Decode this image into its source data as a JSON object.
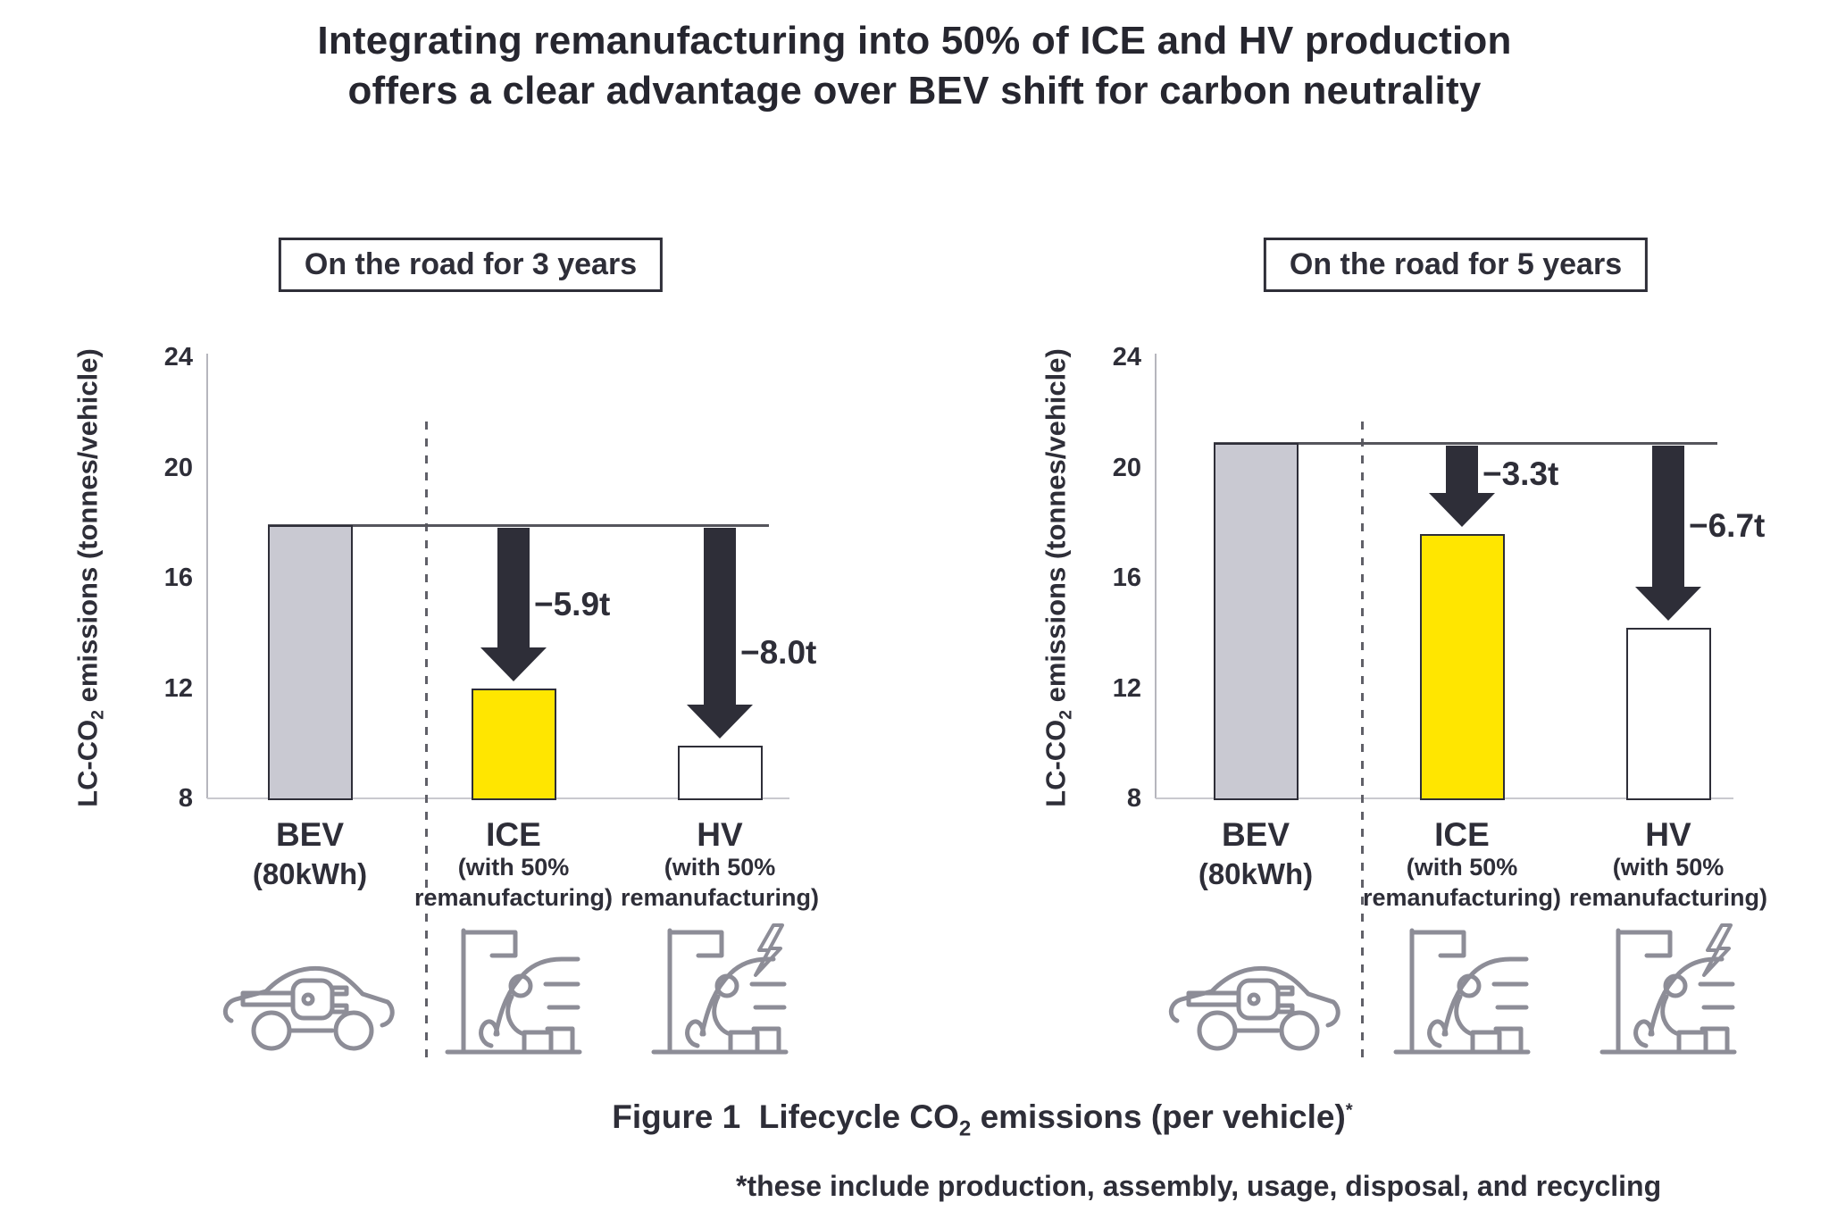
{
  "title": {
    "line1": "Integrating remanufacturing into 50% of ICE and HV production",
    "line2": "offers a clear advantage over BEV shift for carbon neutrality"
  },
  "caption": {
    "pre": "Figure 1  Lifecycle CO",
    "sub": "2",
    "post": " emissions (per vehicle)",
    "sup": "*"
  },
  "footnote": "*these include production, assembly, usage, disposal, and recycling",
  "colors": {
    "ink": "#2e2e38",
    "title_text": "#26262f",
    "bar_gray": "#c9c9d2",
    "bar_yellow": "#ffe600",
    "bar_white": "#ffffff",
    "axis": "#b6b6bd",
    "baseline": "#c9c9cf",
    "reference_line": "#55555c",
    "dashed_divider": "#606068",
    "icon": "#8d8d97"
  },
  "chart_data": [
    {
      "type": "bar",
      "title": "On the road for 3 years",
      "ylabel": "LC-CO2 emissions (tonnes/vehicle)",
      "ylabel_parts": {
        "pre": "LC-CO",
        "sub": "2",
        "post": " emissions (tonnes/vehicle)"
      },
      "ylim": [
        8,
        24
      ],
      "yticks": [
        24,
        20,
        16,
        12,
        8
      ],
      "grid": false,
      "categories": [
        {
          "name": "BEV",
          "sub_lines": [
            "(80kWh)"
          ],
          "icon": "ev-car-plug-icon"
        },
        {
          "name": "ICE",
          "sub_lines": [
            "(with 50%",
            "remanufacturing)"
          ],
          "icon": "assembly-line-car-icon"
        },
        {
          "name": "HV",
          "sub_lines": [
            "(with 50%",
            "remanufacturing)"
          ],
          "icon": "assembly-line-car-lightning-icon"
        }
      ],
      "values": [
        17.9,
        12.0,
        9.9
      ],
      "bar_colors": [
        "#c9c9d2",
        "#ffe600",
        "#ffffff"
      ],
      "reference_line_value": 17.9,
      "annotations": [
        {
          "category": "ICE",
          "label": "−5.9t"
        },
        {
          "category": "HV",
          "label": "−8.0t"
        }
      ]
    },
    {
      "type": "bar",
      "title": "On the road for 5 years",
      "ylabel": "LC-CO2 emissions (tonnes/vehicle)",
      "ylabel_parts": {
        "pre": "LC-CO",
        "sub": "2",
        "post": " emissions (tonnes/vehicle)"
      },
      "ylim": [
        8,
        24
      ],
      "yticks": [
        24,
        20,
        16,
        12,
        8
      ],
      "grid": false,
      "categories": [
        {
          "name": "BEV",
          "sub_lines": [
            "(80kWh)"
          ],
          "icon": "ev-car-plug-icon"
        },
        {
          "name": "ICE",
          "sub_lines": [
            "(with 50%",
            "remanufacturing)"
          ],
          "icon": "assembly-line-car-icon"
        },
        {
          "name": "HV",
          "sub_lines": [
            "(with 50%",
            "remanufacturing)"
          ],
          "icon": "assembly-line-car-lightning-icon"
        }
      ],
      "values": [
        20.9,
        17.6,
        14.2
      ],
      "bar_colors": [
        "#c9c9d2",
        "#ffe600",
        "#ffffff"
      ],
      "reference_line_value": 20.9,
      "annotations": [
        {
          "category": "ICE",
          "label": "−3.3t"
        },
        {
          "category": "HV",
          "label": "−6.7t"
        }
      ]
    }
  ]
}
